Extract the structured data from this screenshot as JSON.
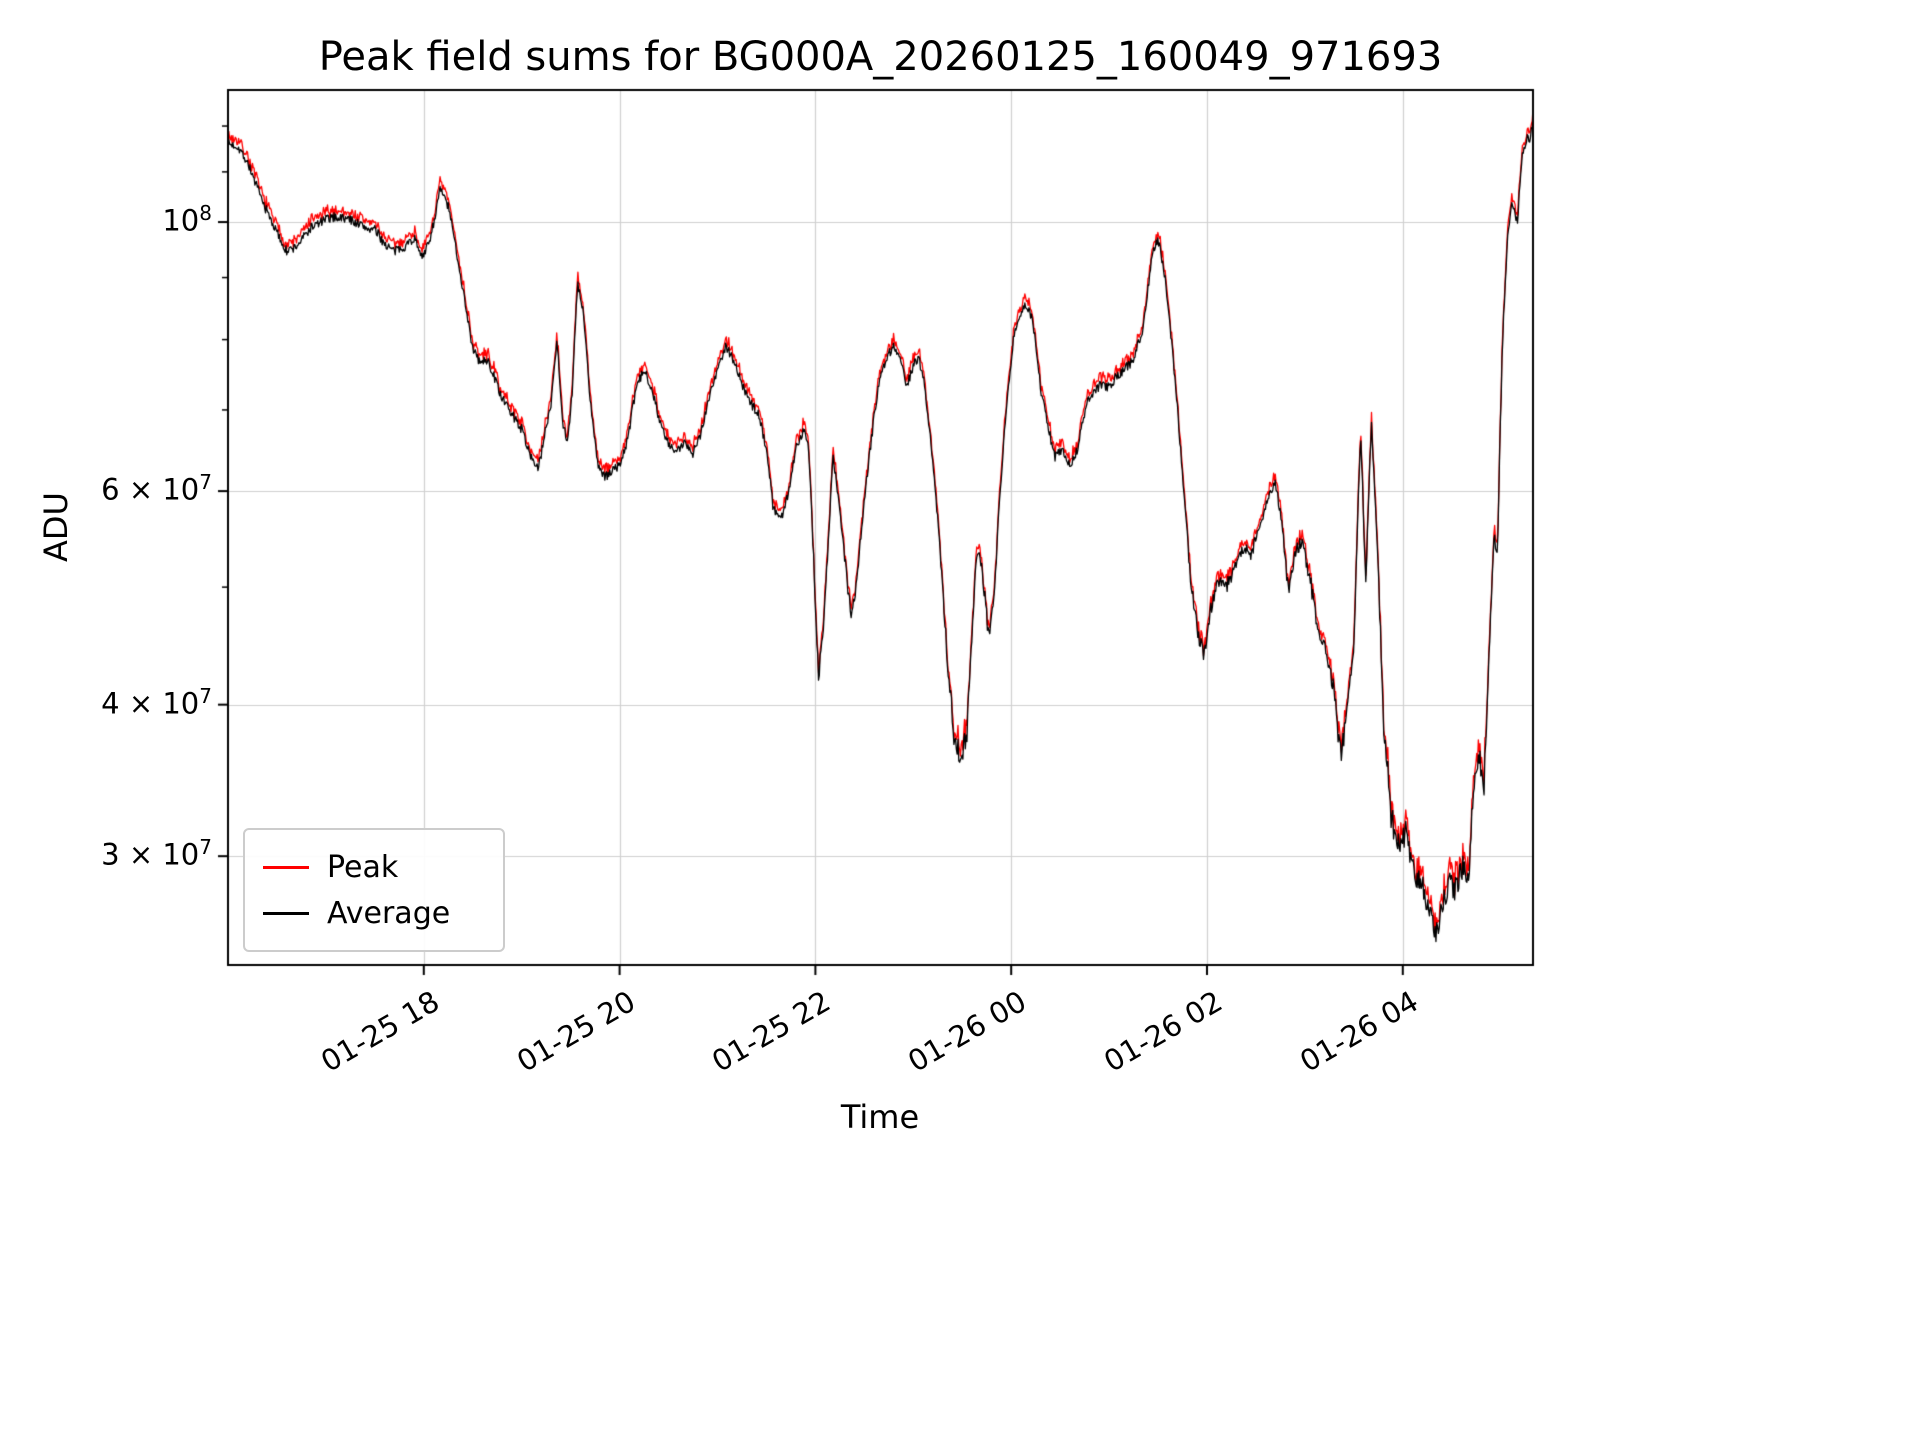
{
  "chart_data": {
    "type": "line",
    "title": "Peak field sums for BG000A_20260125_160049_971693",
    "xlabel": "Time",
    "ylabel": "ADU",
    "y_scale": "log",
    "grid": true,
    "legend_loc": "lower left",
    "value_unit": "ADU × 10^7",
    "x_unit": "hours since 2026-01-25 16:00 (read from x tick labels)",
    "xlim": [
      0,
      13.33
    ],
    "ylim": [
      2.44,
      12.85
    ],
    "x_ticks": [
      {
        "t": 2,
        "label": "01-25 18"
      },
      {
        "t": 4,
        "label": "01-25 20"
      },
      {
        "t": 6,
        "label": "01-25 22"
      },
      {
        "t": 8,
        "label": "01-26 00"
      },
      {
        "t": 10,
        "label": "01-26 02"
      },
      {
        "t": 12,
        "label": "01-26 04"
      }
    ],
    "y_ticks": [
      {
        "value": 10,
        "prefix": "10",
        "exp": "8"
      },
      {
        "value": 6,
        "prefix": "6 × 10",
        "exp": "7"
      },
      {
        "value": 4,
        "prefix": "4 × 10",
        "exp": "7"
      },
      {
        "value": 3,
        "prefix": "3 × 10",
        "exp": "7"
      }
    ],
    "y_minor_ticks": [
      5,
      7,
      8,
      9,
      11,
      12
    ],
    "series": [
      {
        "name": "Peak",
        "color": "#ff0000",
        "note": "slightly above Average (~0.5–2%), visible as red fringe"
      },
      {
        "name": "Average",
        "color": "#000000"
      }
    ],
    "noise": {
      "rel_amp_high": 0.009,
      "rel_amp_mid": 0.015,
      "rel_amp_low": 0.025,
      "peak_extra_low": 0.028,
      "peak_extra_high": 0.014
    },
    "points": [
      [
        0,
        11.6
      ],
      [
        0.1,
        11.55
      ],
      [
        0.2,
        11.2
      ],
      [
        0.35,
        10.4
      ],
      [
        0.5,
        9.8
      ],
      [
        0.6,
        9.45
      ],
      [
        0.7,
        9.55
      ],
      [
        0.85,
        9.9
      ],
      [
        1,
        10.05
      ],
      [
        1.1,
        10.1
      ],
      [
        1.25,
        10.05
      ],
      [
        1.4,
        9.9
      ],
      [
        1.5,
        9.85
      ],
      [
        1.6,
        9.6
      ],
      [
        1.7,
        9.45
      ],
      [
        1.8,
        9.55
      ],
      [
        1.9,
        9.7
      ],
      [
        2,
        9.35
      ],
      [
        2.08,
        9.8
      ],
      [
        2.17,
        10.65
      ],
      [
        2.25,
        10.3
      ],
      [
        2.32,
        9.6
      ],
      [
        2.4,
        8.8
      ],
      [
        2.5,
        7.85
      ],
      [
        2.58,
        7.65
      ],
      [
        2.65,
        7.7
      ],
      [
        2.72,
        7.45
      ],
      [
        2.8,
        7.15
      ],
      [
        2.9,
        6.95
      ],
      [
        3,
        6.75
      ],
      [
        3.08,
        6.45
      ],
      [
        3.17,
        6.25
      ],
      [
        3.3,
        7.1
      ],
      [
        3.36,
        8
      ],
      [
        3.42,
        6.8
      ],
      [
        3.47,
        6.6
      ],
      [
        3.52,
        7.3
      ],
      [
        3.57,
        8.9
      ],
      [
        3.63,
        8.4
      ],
      [
        3.7,
        7.1
      ],
      [
        3.78,
        6.3
      ],
      [
        3.85,
        6.15
      ],
      [
        3.93,
        6.25
      ],
      [
        4,
        6.3
      ],
      [
        4.08,
        6.6
      ],
      [
        4.17,
        7.3
      ],
      [
        4.25,
        7.55
      ],
      [
        4.33,
        7.3
      ],
      [
        4.42,
        6.8
      ],
      [
        4.5,
        6.55
      ],
      [
        4.58,
        6.45
      ],
      [
        4.67,
        6.6
      ],
      [
        4.75,
        6.45
      ],
      [
        4.83,
        6.7
      ],
      [
        4.92,
        7.2
      ],
      [
        5,
        7.55
      ],
      [
        5.08,
        7.9
      ],
      [
        5.15,
        7.75
      ],
      [
        5.25,
        7.35
      ],
      [
        5.33,
        7.1
      ],
      [
        5.42,
        6.95
      ],
      [
        5.5,
        6.5
      ],
      [
        5.57,
        5.8
      ],
      [
        5.65,
        5.7
      ],
      [
        5.72,
        5.95
      ],
      [
        5.8,
        6.5
      ],
      [
        5.88,
        6.75
      ],
      [
        5.93,
        6.55
      ],
      [
        5.98,
        5.3
      ],
      [
        6.03,
        4.2
      ],
      [
        6.08,
        4.6
      ],
      [
        6.13,
        5.4
      ],
      [
        6.18,
        6.4
      ],
      [
        6.24,
        5.9
      ],
      [
        6.3,
        5.25
      ],
      [
        6.37,
        4.7
      ],
      [
        6.43,
        5.1
      ],
      [
        6.5,
        5.9
      ],
      [
        6.57,
        6.6
      ],
      [
        6.65,
        7.4
      ],
      [
        6.73,
        7.75
      ],
      [
        6.8,
        7.9
      ],
      [
        6.87,
        7.75
      ],
      [
        6.93,
        7.3
      ],
      [
        7,
        7.6
      ],
      [
        7.05,
        7.75
      ],
      [
        7.12,
        7.3
      ],
      [
        7.2,
        6.3
      ],
      [
        7.28,
        5.3
      ],
      [
        7.35,
        4.3
      ],
      [
        7.42,
        3.75
      ],
      [
        7.48,
        3.6
      ],
      [
        7.55,
        3.8
      ],
      [
        7.6,
        4.6
      ],
      [
        7.65,
        5.4
      ],
      [
        7.7,
        5.2
      ],
      [
        7.77,
        4.55
      ],
      [
        7.83,
        5
      ],
      [
        7.9,
        6.2
      ],
      [
        7.97,
        7.3
      ],
      [
        8.03,
        8.1
      ],
      [
        8.1,
        8.4
      ],
      [
        8.15,
        8.55
      ],
      [
        8.22,
        8.3
      ],
      [
        8.3,
        7.3
      ],
      [
        8.37,
        6.8
      ],
      [
        8.45,
        6.4
      ],
      [
        8.52,
        6.5
      ],
      [
        8.6,
        6.3
      ],
      [
        8.68,
        6.5
      ],
      [
        8.77,
        7.1
      ],
      [
        8.85,
        7.25
      ],
      [
        8.92,
        7.35
      ],
      [
        9,
        7.3
      ],
      [
        9.07,
        7.45
      ],
      [
        9.15,
        7.55
      ],
      [
        9.25,
        7.7
      ],
      [
        9.35,
        8.2
      ],
      [
        9.45,
        9.5
      ],
      [
        9.5,
        9.7
      ],
      [
        9.57,
        9
      ],
      [
        9.65,
        7.8
      ],
      [
        9.73,
        6.5
      ],
      [
        9.82,
        5.2
      ],
      [
        9.9,
        4.6
      ],
      [
        9.97,
        4.4
      ],
      [
        10.05,
        4.85
      ],
      [
        10.13,
        5.1
      ],
      [
        10.2,
        5
      ],
      [
        10.28,
        5.2
      ],
      [
        10.37,
        5.4
      ],
      [
        10.45,
        5.3
      ],
      [
        10.53,
        5.6
      ],
      [
        10.62,
        5.9
      ],
      [
        10.7,
        6.1
      ],
      [
        10.77,
        5.6
      ],
      [
        10.83,
        4.95
      ],
      [
        10.9,
        5.35
      ],
      [
        10.97,
        5.45
      ],
      [
        11.05,
        5.1
      ],
      [
        11.13,
        4.6
      ],
      [
        11.22,
        4.4
      ],
      [
        11.3,
        4.1
      ],
      [
        11.37,
        3.6
      ],
      [
        11.43,
        4
      ],
      [
        11.5,
        4.4
      ],
      [
        11.57,
        6.7
      ],
      [
        11.62,
        5
      ],
      [
        11.68,
        6.8
      ],
      [
        11.73,
        5.6
      ],
      [
        11.8,
        3.9
      ],
      [
        11.88,
        3.25
      ],
      [
        11.95,
        3.05
      ],
      [
        12.03,
        3.15
      ],
      [
        12.1,
        2.95
      ],
      [
        12.18,
        2.85
      ],
      [
        12.25,
        2.75
      ],
      [
        12.33,
        2.6
      ],
      [
        12.4,
        2.7
      ],
      [
        12.47,
        2.85
      ],
      [
        12.53,
        2.8
      ],
      [
        12.6,
        2.95
      ],
      [
        12.67,
        2.85
      ],
      [
        12.73,
        3.5
      ],
      [
        12.78,
        3.65
      ],
      [
        12.83,
        3.4
      ],
      [
        12.88,
        4.4
      ],
      [
        12.93,
        5.45
      ],
      [
        12.97,
        5.4
      ],
      [
        13.02,
        8
      ],
      [
        13.07,
        9.7
      ],
      [
        13.12,
        10.4
      ],
      [
        13.17,
        10
      ],
      [
        13.22,
        11.3
      ],
      [
        13.27,
        11.8
      ],
      [
        13.3,
        11.7
      ],
      [
        13.33,
        12.2
      ]
    ]
  }
}
